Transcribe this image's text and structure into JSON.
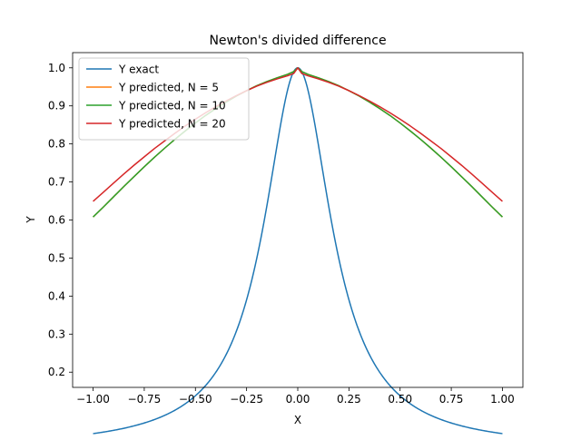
{
  "chart_data": {
    "type": "line",
    "title": "Newton's divided difference",
    "xlabel": "X",
    "ylabel": "Y",
    "xlim": [
      -1.1,
      1.1
    ],
    "ylim": [
      0.16,
      1.04
    ],
    "xticks": [
      -1.0,
      -0.75,
      -0.5,
      -0.25,
      0.0,
      0.25,
      0.5,
      0.75,
      1.0
    ],
    "xtick_labels": [
      "−1.00",
      "−0.75",
      "−0.50",
      "−0.25",
      "0.00",
      "0.25",
      "0.50",
      "0.75",
      "1.00"
    ],
    "yticks": [
      0.2,
      0.3,
      0.4,
      0.5,
      0.6,
      0.7,
      0.8,
      0.9,
      1.0
    ],
    "ytick_labels": [
      "0.2",
      "0.3",
      "0.4",
      "0.5",
      "0.6",
      "0.7",
      "0.8",
      "0.9",
      "1.0"
    ],
    "grid": false,
    "legend_position": "top-left",
    "x": [
      -1.0,
      -0.95,
      -0.9,
      -0.85,
      -0.8,
      -0.75,
      -0.7,
      -0.65,
      -0.6,
      -0.55,
      -0.5,
      -0.45,
      -0.4,
      -0.35,
      -0.3,
      -0.25,
      -0.2,
      -0.15,
      -0.1,
      -0.05,
      -0.02,
      0.0,
      0.02,
      0.05,
      0.1,
      0.15,
      0.2,
      0.25,
      0.3,
      0.35,
      0.4,
      0.45,
      0.5,
      0.55,
      0.6,
      0.65,
      0.7,
      0.75,
      0.8,
      0.85,
      0.9,
      0.95,
      1.0
    ],
    "series": [
      {
        "name": "Y exact",
        "color": "#1f77b4",
        "values": [
          0.196,
          0.214,
          0.234,
          0.258,
          0.286,
          0.318,
          0.355,
          0.399,
          0.45,
          0.509,
          0.576,
          0.651,
          0.735,
          0.826,
          0.91,
          0.961,
          0.988,
          0.998,
          1.0,
          1.0,
          1.0,
          1.0,
          1.0,
          1.0,
          1.0,
          0.998,
          0.988,
          0.961,
          0.91,
          0.826,
          0.735,
          0.651,
          0.576,
          0.509,
          0.45,
          0.399,
          0.355,
          0.318,
          0.286,
          0.258,
          0.234,
          0.214,
          0.196
        ],
        "shape": "runge"
      },
      {
        "name": "Y predicted, N = 5",
        "color": "#ff7f0e",
        "values": [
          0.608,
          0.634,
          0.661,
          0.688,
          0.714,
          0.74,
          0.765,
          0.789,
          0.812,
          0.834,
          0.855,
          0.875,
          0.893,
          0.91,
          0.926,
          0.94,
          0.953,
          0.964,
          0.974,
          0.983,
          0.99,
          1.0,
          0.99,
          0.983,
          0.974,
          0.964,
          0.953,
          0.94,
          0.926,
          0.91,
          0.893,
          0.875,
          0.855,
          0.834,
          0.812,
          0.789,
          0.765,
          0.74,
          0.714,
          0.688,
          0.661,
          0.634,
          0.608
        ]
      },
      {
        "name": "Y predicted, N = 10",
        "color": "#2ca02c",
        "values": [
          0.608,
          0.634,
          0.661,
          0.688,
          0.714,
          0.74,
          0.765,
          0.789,
          0.812,
          0.834,
          0.855,
          0.875,
          0.893,
          0.91,
          0.926,
          0.94,
          0.953,
          0.964,
          0.974,
          0.983,
          0.99,
          1.0,
          0.99,
          0.983,
          0.974,
          0.964,
          0.953,
          0.94,
          0.926,
          0.91,
          0.893,
          0.875,
          0.855,
          0.834,
          0.812,
          0.789,
          0.765,
          0.74,
          0.714,
          0.688,
          0.661,
          0.634,
          0.608
        ]
      },
      {
        "name": "Y predicted, N = 20",
        "color": "#d62728",
        "values": [
          0.649,
          0.673,
          0.697,
          0.721,
          0.744,
          0.766,
          0.788,
          0.808,
          0.828,
          0.847,
          0.865,
          0.882,
          0.898,
          0.913,
          0.927,
          0.94,
          0.952,
          0.962,
          0.971,
          0.979,
          0.985,
          1.0,
          0.985,
          0.979,
          0.971,
          0.962,
          0.952,
          0.94,
          0.927,
          0.913,
          0.898,
          0.882,
          0.865,
          0.847,
          0.828,
          0.808,
          0.788,
          0.766,
          0.744,
          0.721,
          0.697,
          0.673,
          0.649
        ]
      }
    ]
  }
}
